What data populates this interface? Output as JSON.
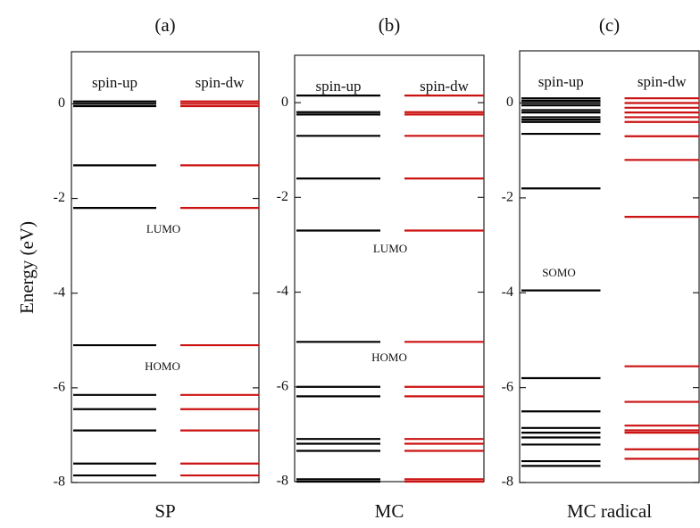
{
  "chart_data": [
    {
      "type": "energy-levels",
      "title": "(a)",
      "xlabel": "SP",
      "ylabel": "Energy (eV)",
      "ylim": [
        -8,
        1.1
      ],
      "yticks": [
        0,
        -2,
        -4,
        -6,
        -8
      ],
      "series": [
        {
          "name": "spin-up",
          "color": "#000000",
          "values": [
            0.05,
            0.0,
            -0.05,
            -1.3,
            -2.2,
            -5.1,
            -6.15,
            -6.45,
            -6.9,
            -7.6,
            -7.85
          ]
        },
        {
          "name": "spin-dw",
          "color": "#cc1111",
          "values": [
            0.05,
            0.0,
            -0.05,
            -1.3,
            -2.2,
            -5.1,
            -6.15,
            -6.45,
            -6.9,
            -7.6,
            -7.85
          ]
        }
      ],
      "annotations": [
        "LUMO",
        "HOMO"
      ]
    },
    {
      "type": "energy-levels",
      "title": "(b)",
      "xlabel": "MC",
      "ylim": [
        -8,
        1.0
      ],
      "yticks": [
        0,
        -2,
        -4,
        -6,
        -8
      ],
      "series": [
        {
          "name": "spin-up",
          "color": "#000000",
          "values": [
            0.15,
            -0.2,
            -0.25,
            -0.7,
            -1.6,
            -2.7,
            -5.05,
            -6.0,
            -6.2,
            -7.1,
            -7.2,
            -7.35,
            -7.95,
            -8.0
          ]
        },
        {
          "name": "spin-dw",
          "color": "#cc1111",
          "values": [
            0.15,
            -0.2,
            -0.25,
            -0.7,
            -1.6,
            -2.7,
            -5.05,
            -6.0,
            -6.2,
            -7.1,
            -7.2,
            -7.35,
            -7.95,
            -8.0
          ]
        }
      ],
      "annotations": [
        "LUMO",
        "HOMO"
      ]
    },
    {
      "type": "energy-levels",
      "title": "(c)",
      "xlabel": "MC radical",
      "ylim": [
        -8,
        1.1
      ],
      "yticks": [
        0,
        -2,
        -4,
        -6,
        -8
      ],
      "series": [
        {
          "name": "spin-up",
          "color": "#000000",
          "values": [
            0.1,
            0.05,
            0.0,
            -0.05,
            -0.15,
            -0.2,
            -0.3,
            -0.35,
            -0.4,
            -0.65,
            -1.8,
            -3.95,
            -5.8,
            -6.5,
            -6.85,
            -6.95,
            -7.05,
            -7.2,
            -7.55,
            -7.65
          ]
        },
        {
          "name": "spin-dw",
          "color": "#cc1111",
          "values": [
            0.1,
            0.0,
            -0.1,
            -0.2,
            -0.3,
            -0.4,
            -0.7,
            -1.2,
            -2.4,
            -5.55,
            -6.3,
            -6.8,
            -6.9,
            -6.95,
            -7.3,
            -7.5
          ]
        }
      ],
      "annotations": [
        "SOMO"
      ]
    }
  ]
}
